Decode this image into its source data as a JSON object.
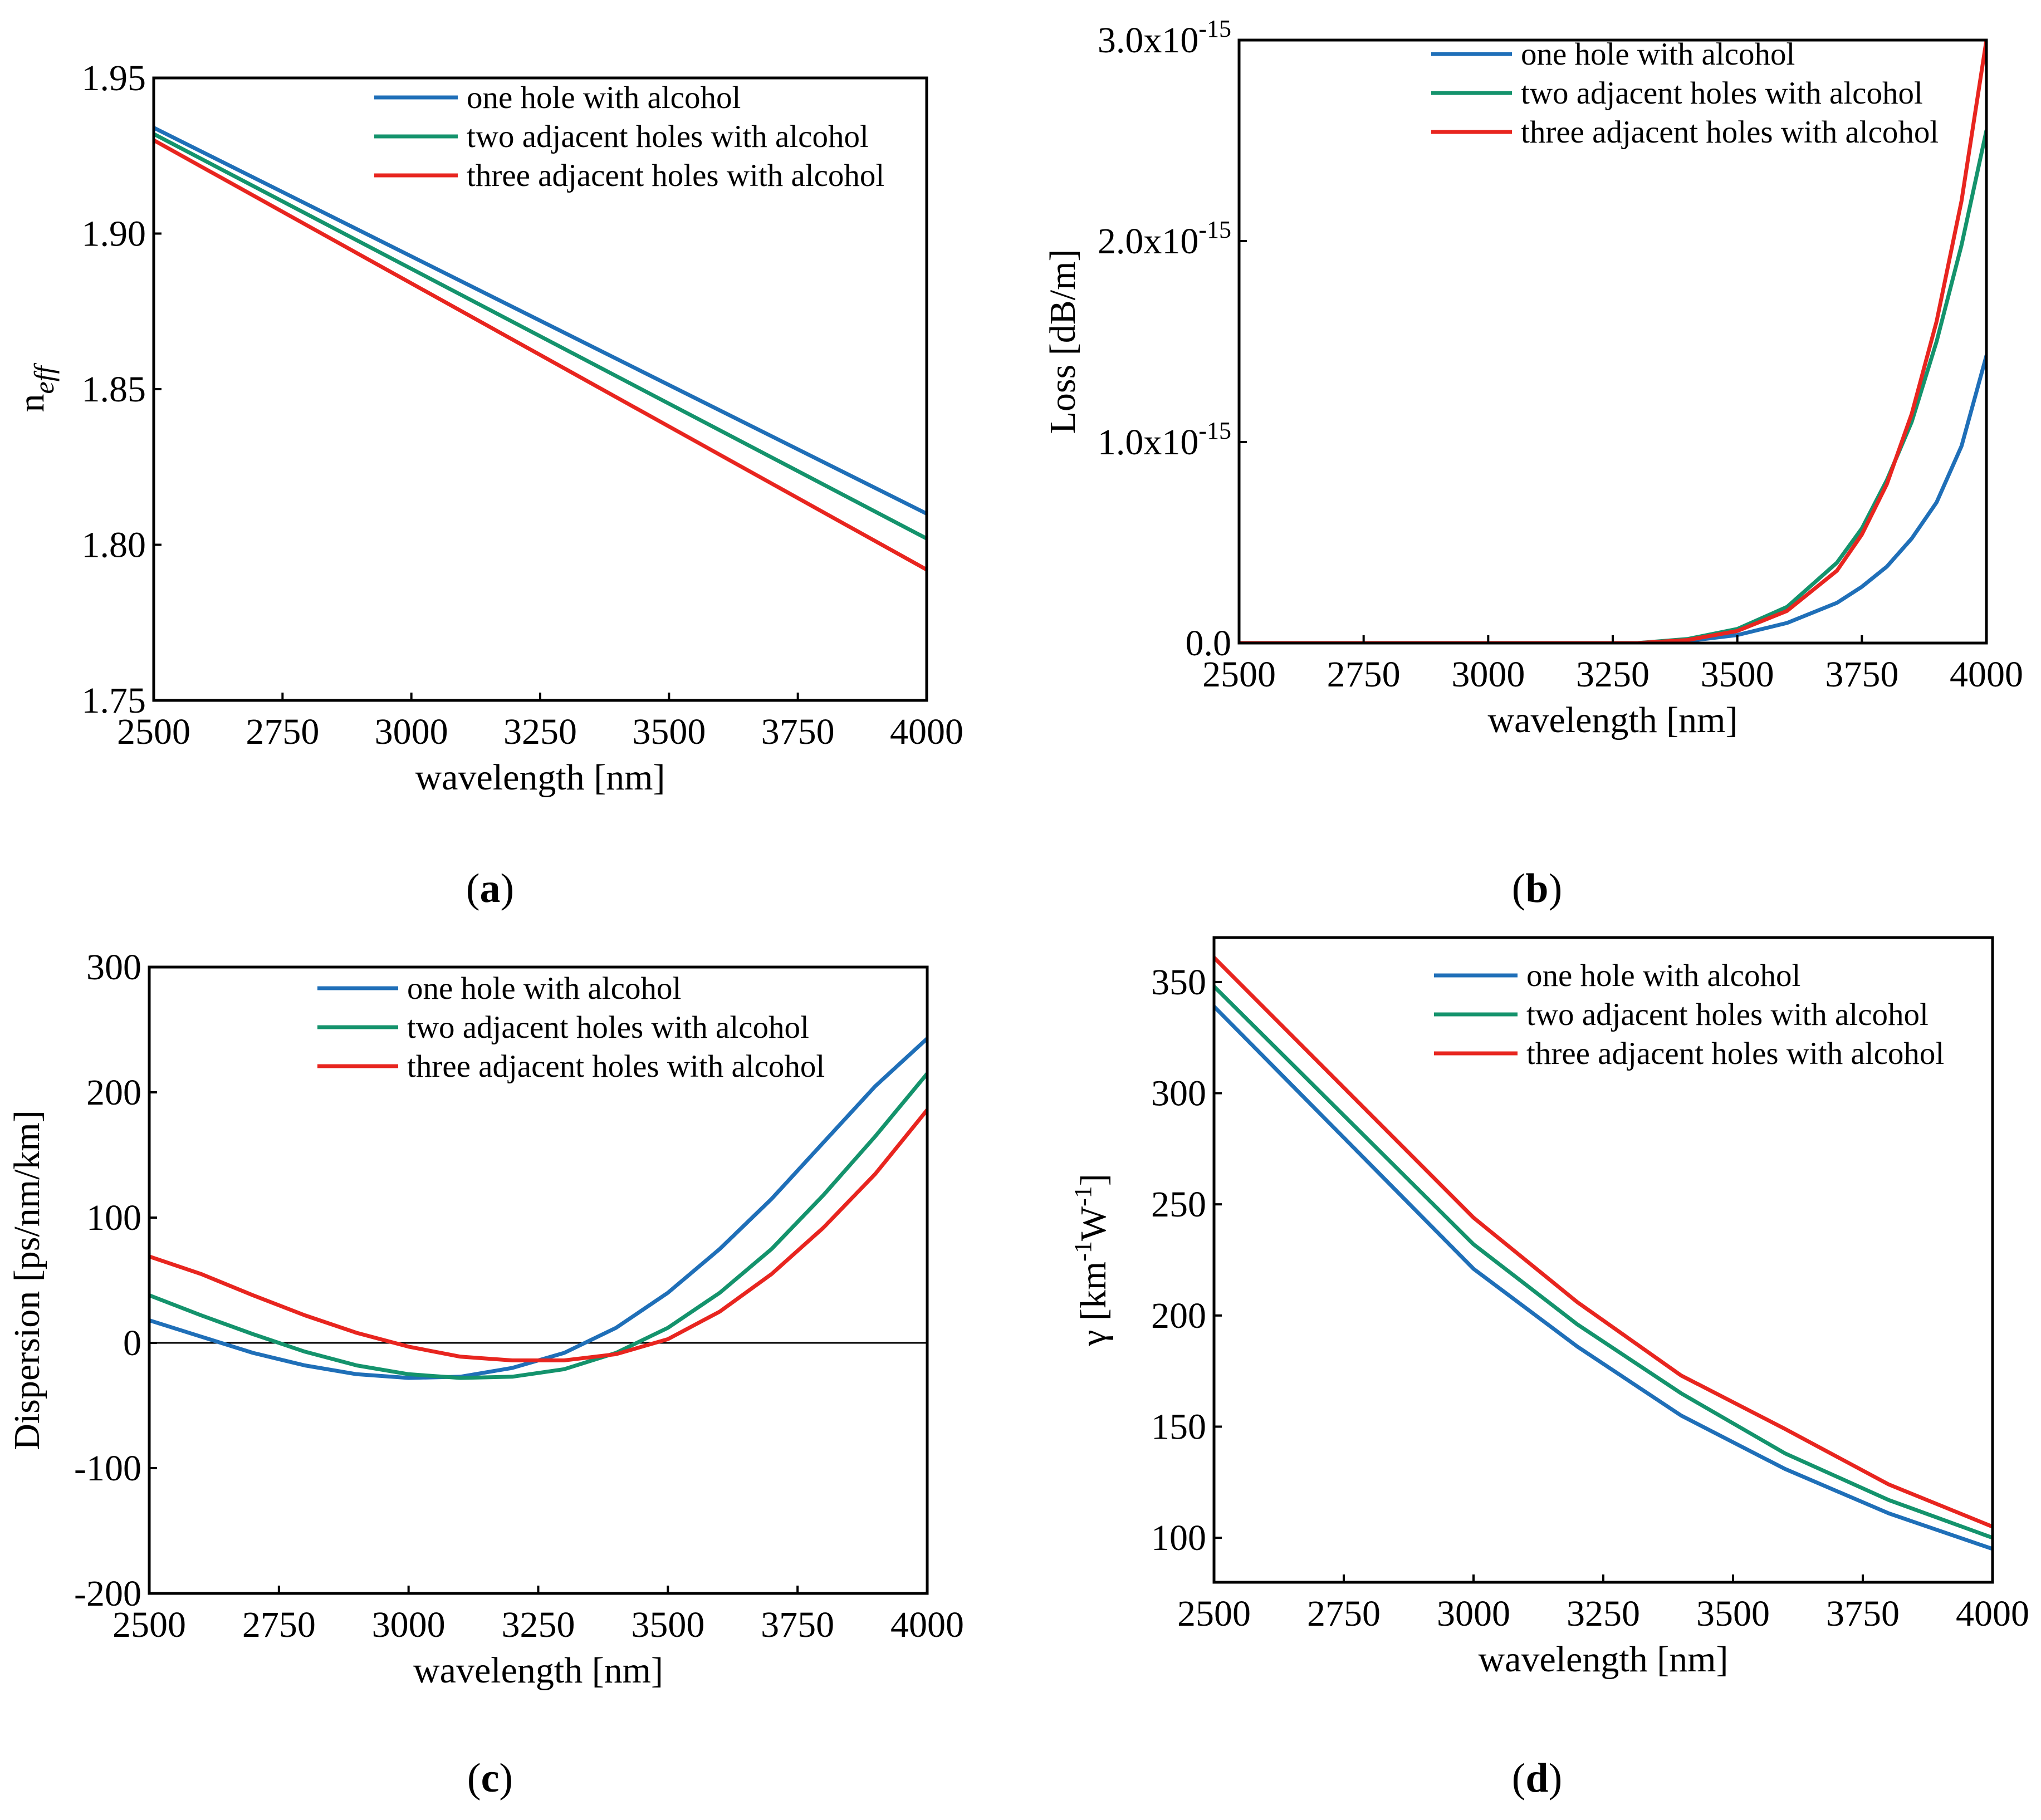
{
  "figure": {
    "legend_labels": [
      "one hole with alcohol",
      "two adjacent holes with alcohol",
      "three adjacent holes with alcohol"
    ],
    "series_colors": [
      "#1f6fb8",
      "#14936c",
      "#e8251f"
    ]
  },
  "chart_data": [
    {
      "id": "a",
      "type": "line",
      "panel_label": "a",
      "xlabel": "wavelength [nm]",
      "ylabel": "n",
      "ylabel_sub": "eff",
      "xlim": [
        2500,
        4000
      ],
      "ylim": [
        1.75,
        1.95
      ],
      "xticks": [
        2500,
        2750,
        3000,
        3250,
        3500,
        3750,
        4000
      ],
      "xtick_labels": [
        "2500",
        "2750",
        "3000",
        "3250",
        "3500",
        "3750",
        "4000"
      ],
      "yticks": [
        1.75,
        1.8,
        1.85,
        1.9,
        1.95
      ],
      "ytick_labels": [
        "1.75",
        "1.80",
        "1.85",
        "1.90",
        "1.95"
      ],
      "legend": "top-right",
      "series": [
        {
          "name": "one hole with alcohol",
          "x": [
            2500,
            4000
          ],
          "y": [
            1.934,
            1.81
          ]
        },
        {
          "name": "two adjacent holes with alcohol",
          "x": [
            2500,
            4000
          ],
          "y": [
            1.932,
            1.802
          ]
        },
        {
          "name": "three adjacent holes with alcohol",
          "x": [
            2500,
            4000
          ],
          "y": [
            1.93,
            1.792
          ]
        }
      ]
    },
    {
      "id": "b",
      "type": "line",
      "panel_label": "b",
      "xlabel": "wavelength [nm]",
      "ylabel": "Loss [dB/m]",
      "xlim": [
        2500,
        4000
      ],
      "ylim": [
        0,
        3.0
      ],
      "y_scale_note": "values in units of 10^-15 dB/m",
      "xticks": [
        2500,
        2750,
        3000,
        3250,
        3500,
        3750,
        4000
      ],
      "xtick_labels": [
        "2500",
        "2750",
        "3000",
        "3250",
        "3500",
        "3750",
        "4000"
      ],
      "yticks": [
        0,
        1.0,
        2.0,
        3.0
      ],
      "ytick_labels": [
        {
          "base": "0.0",
          "exp": ""
        },
        {
          "base": "1.0x10",
          "exp": "-15"
        },
        {
          "base": "2.0x10",
          "exp": "-15"
        },
        {
          "base": "3.0x10",
          "exp": "-15"
        }
      ],
      "legend": "top-right",
      "series": [
        {
          "name": "one hole with alcohol",
          "x": [
            2500,
            3300,
            3400,
            3500,
            3600,
            3700,
            3750,
            3800,
            3850,
            3900,
            3950,
            4000
          ],
          "y": [
            0,
            0,
            0.01,
            0.04,
            0.1,
            0.2,
            0.28,
            0.38,
            0.52,
            0.7,
            0.98,
            1.43
          ]
        },
        {
          "name": "two adjacent holes with alcohol",
          "x": [
            2500,
            3300,
            3400,
            3500,
            3600,
            3700,
            3750,
            3800,
            3850,
            3900,
            3950,
            4000
          ],
          "y": [
            0,
            0,
            0.02,
            0.07,
            0.18,
            0.4,
            0.57,
            0.81,
            1.1,
            1.5,
            1.98,
            2.55
          ]
        },
        {
          "name": "three adjacent holes with alcohol",
          "x": [
            2500,
            3300,
            3400,
            3500,
            3600,
            3700,
            3750,
            3800,
            3850,
            3900,
            3950,
            4000
          ],
          "y": [
            0,
            0,
            0.015,
            0.06,
            0.16,
            0.36,
            0.54,
            0.79,
            1.14,
            1.6,
            2.2,
            3.0
          ]
        }
      ]
    },
    {
      "id": "c",
      "type": "line",
      "panel_label": "c",
      "xlabel": "wavelength [nm]",
      "ylabel": "Dispersion [ps/nm/km]",
      "xlim": [
        2500,
        4000
      ],
      "ylim": [
        -200,
        300
      ],
      "xticks": [
        2500,
        2750,
        3000,
        3250,
        3500,
        3750,
        4000
      ],
      "xtick_labels": [
        "2500",
        "2750",
        "3000",
        "3250",
        "3500",
        "3750",
        "4000"
      ],
      "yticks": [
        -200,
        -100,
        0,
        100,
        200,
        300
      ],
      "ytick_labels": [
        "-200",
        "-100",
        "0",
        "100",
        "200",
        "300"
      ],
      "zero_line": true,
      "legend": "top-right",
      "series": [
        {
          "name": "one hole with alcohol",
          "x": [
            2500,
            2600,
            2700,
            2800,
            2900,
            3000,
            3100,
            3200,
            3300,
            3400,
            3500,
            3600,
            3700,
            3800,
            3900,
            4000
          ],
          "y": [
            18,
            5,
            -8,
            -18,
            -25,
            -28,
            -27,
            -20,
            -8,
            12,
            40,
            75,
            115,
            160,
            205,
            243
          ]
        },
        {
          "name": "two adjacent holes with alcohol",
          "x": [
            2500,
            2600,
            2700,
            2800,
            2900,
            3000,
            3100,
            3200,
            3300,
            3400,
            3500,
            3600,
            3700,
            3800,
            3900,
            4000
          ],
          "y": [
            38,
            22,
            7,
            -7,
            -18,
            -25,
            -28,
            -27,
            -21,
            -8,
            12,
            40,
            75,
            118,
            165,
            215
          ]
        },
        {
          "name": "three adjacent holes with alcohol",
          "x": [
            2500,
            2600,
            2700,
            2800,
            2900,
            3000,
            3100,
            3200,
            3300,
            3400,
            3500,
            3600,
            3700,
            3800,
            3900,
            4000
          ],
          "y": [
            69,
            55,
            38,
            22,
            8,
            -3,
            -11,
            -14,
            -14,
            -9,
            3,
            25,
            55,
            92,
            135,
            186
          ]
        }
      ]
    },
    {
      "id": "d",
      "type": "line",
      "panel_label": "d",
      "xlabel": "wavelength [nm]",
      "ylabel": "γ [km",
      "ylabel_parts": {
        "prefix": "γ [km",
        "sup1": "-1",
        "mid": "W",
        "sup2": "-1",
        "suffix": "]"
      },
      "xlim": [
        2500,
        4000
      ],
      "ylim": [
        80,
        370
      ],
      "xticks": [
        2500,
        2750,
        3000,
        3250,
        3500,
        3750,
        4000
      ],
      "xtick_labels": [
        "2500",
        "2750",
        "3000",
        "3250",
        "3500",
        "3750",
        "4000"
      ],
      "yticks": [
        100,
        150,
        200,
        250,
        300,
        350
      ],
      "ytick_labels": [
        "100",
        "150",
        "200",
        "250",
        "300",
        "350"
      ],
      "legend": "top-right",
      "series": [
        {
          "name": "one hole with alcohol",
          "x": [
            2500,
            3000,
            3200,
            3400,
            3600,
            3800,
            4000
          ],
          "y": [
            339,
            221,
            186,
            155,
            131,
            111,
            95
          ]
        },
        {
          "name": "two adjacent holes with alcohol",
          "x": [
            2500,
            3000,
            3200,
            3400,
            3600,
            3800,
            4000
          ],
          "y": [
            348,
            232,
            196,
            165,
            138,
            117,
            100
          ]
        },
        {
          "name": "three adjacent holes with alcohol",
          "x": [
            2500,
            3000,
            3200,
            3400,
            3600,
            3800,
            4000
          ],
          "y": [
            361,
            244,
            206,
            173,
            149,
            124,
            105
          ]
        }
      ]
    }
  ]
}
